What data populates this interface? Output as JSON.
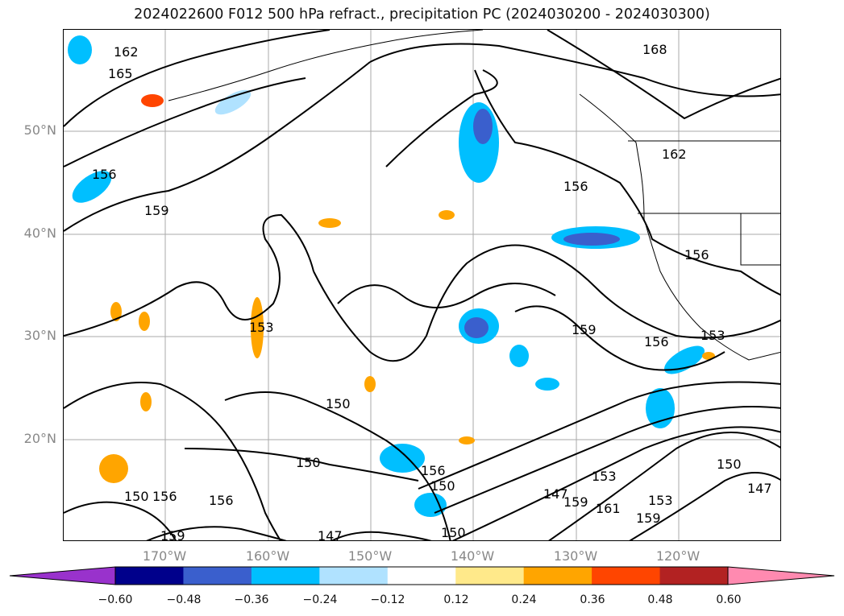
{
  "title": "2024022600 F012 500 hPa refract., precipitation PC (2024030200 - 2024030300)",
  "map": {
    "lat_labels": [
      "50°N",
      "40°N",
      "30°N",
      "20°N"
    ],
    "lon_labels": [
      "170°W",
      "160°W",
      "150°W",
      "140°W",
      "130°W",
      "120°W"
    ],
    "contour_labels": [
      "162",
      "165",
      "156",
      "159",
      "168",
      "162",
      "156",
      "156",
      "159",
      "156",
      "153",
      "153",
      "150",
      "150",
      "156",
      "150",
      "150",
      "156",
      "156",
      "147",
      "153",
      "159",
      "161",
      "153",
      "159",
      "150",
      "147",
      "147",
      "150",
      "159"
    ]
  },
  "colorbar": {
    "ticks": [
      "−0.60",
      "−0.48",
      "−0.36",
      "−0.24",
      "−0.12",
      "0.12",
      "0.24",
      "0.36",
      "0.48",
      "0.60"
    ],
    "colors": [
      "#9932cc",
      "#00008b",
      "#3a5fcd",
      "#00bfff",
      "#b0e2ff",
      "#ffffff",
      "#ffe98a",
      "#ffa500",
      "#ff4500",
      "#b22222",
      "#ff8ab0"
    ]
  }
}
